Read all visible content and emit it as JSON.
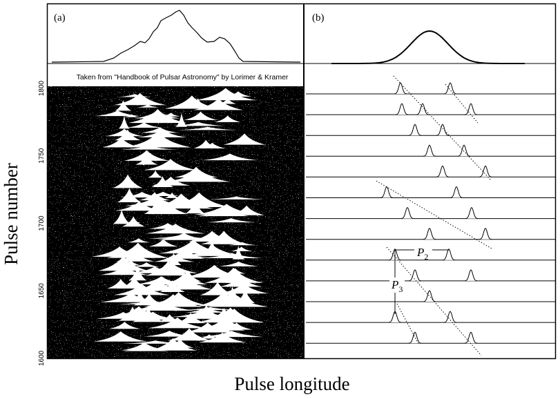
{
  "panels": [
    {
      "label": "(a)",
      "credit": "Taken from \"Handbook of Pulsar Astronomy\" by Lorimer & Kramer"
    },
    {
      "label": "(b)",
      "annotations": [
        {
          "symbol": "P",
          "subscript": "2"
        },
        {
          "symbol": "P",
          "subscript": "3"
        }
      ]
    }
  ],
  "y_axis": {
    "label": "Pulse number",
    "ticks": [
      1600,
      1650,
      1700,
      1750,
      1800
    ]
  },
  "x_axis": {
    "label": "Pulse longitude"
  }
}
